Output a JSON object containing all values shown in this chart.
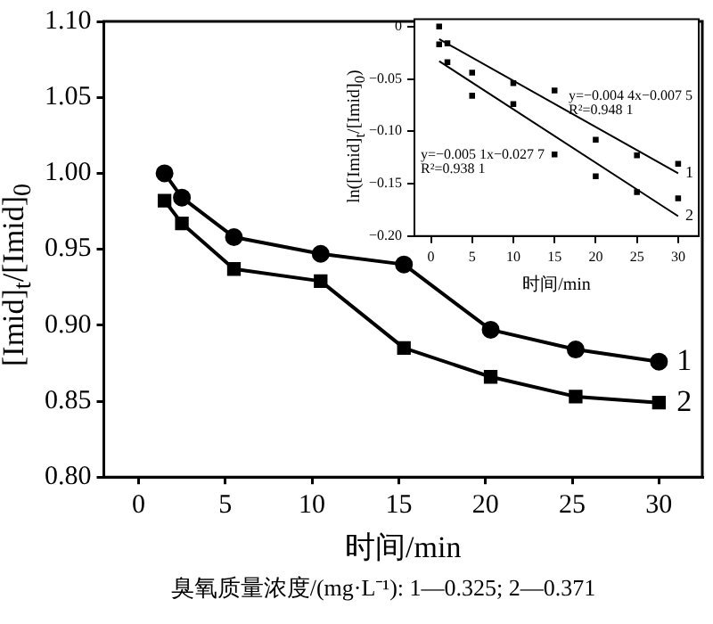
{
  "chart_data": [
    {
      "type": "line",
      "xlabel": "时间/min",
      "ylabel": "[Imid]$_{t}$/[Imid]$_{0}$",
      "x": [
        1.5,
        2.5,
        5.5,
        10.5,
        15.3,
        20.3,
        25.2,
        30
      ],
      "series": [
        {
          "name": "1",
          "color": "#000000",
          "marker": "circle",
          "values": [
            1.0,
            0.984,
            0.958,
            0.947,
            0.94,
            0.897,
            0.884,
            0.876
          ]
        },
        {
          "name": "2",
          "color": "#000000",
          "marker": "square",
          "values": [
            0.982,
            0.967,
            0.937,
            0.929,
            0.885,
            0.866,
            0.853,
            0.849
          ]
        }
      ],
      "xlim": [
        -2,
        32.5
      ],
      "xticks": [
        0,
        5,
        10,
        15,
        20,
        25,
        30
      ],
      "ylim": [
        0.8,
        1.1
      ],
      "yticks": [
        {
          "value": 0.8,
          "label": "0.80"
        },
        {
          "value": 0.85,
          "label": "0.85"
        },
        {
          "value": 0.9,
          "label": "0.90"
        },
        {
          "value": 0.95,
          "label": "0.95"
        },
        {
          "value": 1.0,
          "label": "1.00"
        },
        {
          "value": 1.05,
          "label": "1.05"
        },
        {
          "value": 1.1,
          "label": "1.10"
        }
      ],
      "grid": false,
      "legend": false,
      "annotations": [
        "臭氧质量浓度/(mg·L⁻¹): 1—0.325; 2—0.371"
      ]
    },
    {
      "type": "scatter",
      "xlabel": "时间/min",
      "ylabel": "ln([Imid]$_{t}$/[Imid]$_{0}$)",
      "marker": "square",
      "series": [
        {
          "color": "#000000",
          "x": [
            1,
            2,
            5,
            10,
            15,
            20,
            25,
            30
          ],
          "values": [
            0,
            -0.016,
            -0.044,
            -0.054,
            -0.061,
            -0.108,
            -0.123,
            -0.131
          ]
        },
        {
          "color": "#000000",
          "x": [
            1,
            2,
            5,
            10,
            15,
            20,
            25,
            30
          ],
          "values": [
            -0.017,
            -0.034,
            -0.066,
            -0.074,
            -0.122,
            -0.143,
            -0.158,
            -0.164
          ]
        },
        {
          "type": "line",
          "name": "1",
          "color": "#000000",
          "marker": "none",
          "x": [
            1,
            30
          ],
          "values": [
            -0.012,
            -0.14
          ]
        },
        {
          "type": "line",
          "name": "2",
          "color": "#000000",
          "marker": "none",
          "x": [
            1,
            30
          ],
          "values": [
            -0.033,
            -0.181
          ]
        }
      ],
      "xlim": [
        -2,
        32.5
      ],
      "xticks": [
        0,
        5,
        10,
        15,
        20,
        25,
        30
      ],
      "ylim": [
        -0.2,
        0.007
      ],
      "yticks": [
        {
          "value": 0,
          "label": "0"
        },
        {
          "value": -0.05,
          "label": "−0.05"
        },
        {
          "value": -0.1,
          "label": "−0.10"
        },
        {
          "value": -0.15,
          "label": "−0.15"
        },
        {
          "value": -0.2,
          "label": "−0.20"
        }
      ],
      "grid": false,
      "legend": false,
      "annotations": [
        "y=−0.004 4x−0.007 5",
        "R²=0.948 1",
        "y=−0.005 1x−0.027 7",
        "R²=0.938 1"
      ]
    }
  ]
}
